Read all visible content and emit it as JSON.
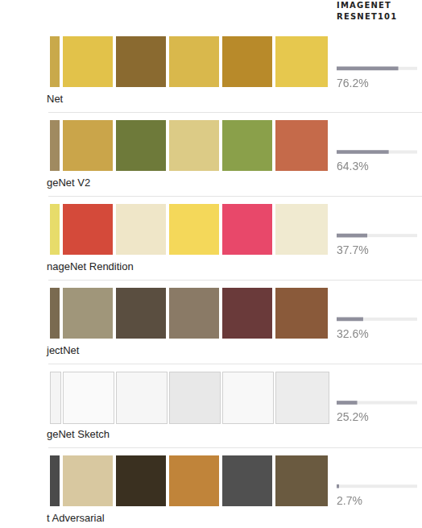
{
  "chart_data": {
    "type": "bar",
    "orientation": "horizontal",
    "title": "IMAGENET RESNET101",
    "categories": [
      "Net",
      "geNet V2",
      "nageNet Rendition",
      "jectNet",
      "geNet Sketch",
      "t Adversarial"
    ],
    "values": [
      76.2,
      64.3,
      37.7,
      32.6,
      25.2,
      2.7
    ],
    "value_labels": [
      "76.2%",
      "64.3%",
      "37.7%",
      "32.6%",
      "25.2%",
      "2.7%"
    ],
    "color": "#8f8f9c",
    "xlim": [
      0,
      100
    ],
    "grid": false,
    "tick_labels": false
  }
}
